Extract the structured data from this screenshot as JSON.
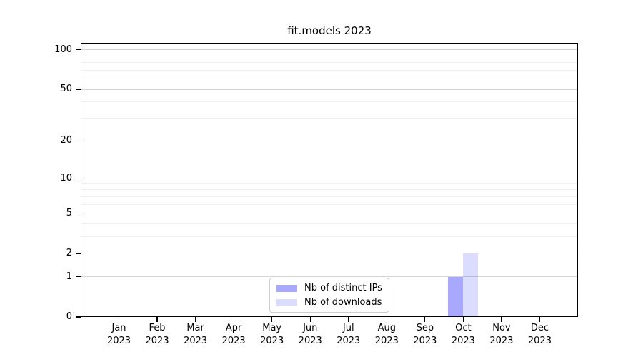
{
  "chart_data": {
    "type": "bar",
    "title": "fit.models 2023",
    "xlabel": "",
    "ylabel": "",
    "yscale": "log1p",
    "ylim": [
      0,
      113
    ],
    "grid": true,
    "legend_position": "lower center",
    "categories": [
      {
        "label": "Jan",
        "sublabel": "2023"
      },
      {
        "label": "Feb",
        "sublabel": "2023"
      },
      {
        "label": "Mar",
        "sublabel": "2023"
      },
      {
        "label": "Apr",
        "sublabel": "2023"
      },
      {
        "label": "May",
        "sublabel": "2023"
      },
      {
        "label": "Jun",
        "sublabel": "2023"
      },
      {
        "label": "Jul",
        "sublabel": "2023"
      },
      {
        "label": "Aug",
        "sublabel": "2023"
      },
      {
        "label": "Sep",
        "sublabel": "2023"
      },
      {
        "label": "Oct",
        "sublabel": "2023"
      },
      {
        "label": "Nov",
        "sublabel": "2023"
      },
      {
        "label": "Dec",
        "sublabel": "2023"
      }
    ],
    "y_ticks": [
      0,
      1,
      2,
      5,
      10,
      20,
      50,
      100
    ],
    "y_minor_ticks": [
      3,
      4,
      6,
      7,
      8,
      9,
      30,
      40,
      60,
      70,
      80,
      90
    ],
    "series": [
      {
        "name": "Nb of distinct IPs",
        "color": "#6666ff91",
        "values": [
          0,
          0,
          0,
          0,
          0,
          0,
          0,
          0,
          0,
          1,
          0,
          0
        ]
      },
      {
        "name": "Nb of downloads",
        "color": "#6666ff3b",
        "values": [
          0,
          0,
          0,
          0,
          0,
          0,
          0,
          0,
          0,
          2,
          0,
          0
        ]
      }
    ],
    "colors": {
      "bar_distinct_ips": "#a8a8fa",
      "bar_downloads": "#dcdcfa",
      "grid_major": "#d4d4d4",
      "grid_minor": "#efefef",
      "spine": "#000000",
      "legend_border": "#cccccc",
      "text": "#000000",
      "background": "#ffffff"
    }
  }
}
